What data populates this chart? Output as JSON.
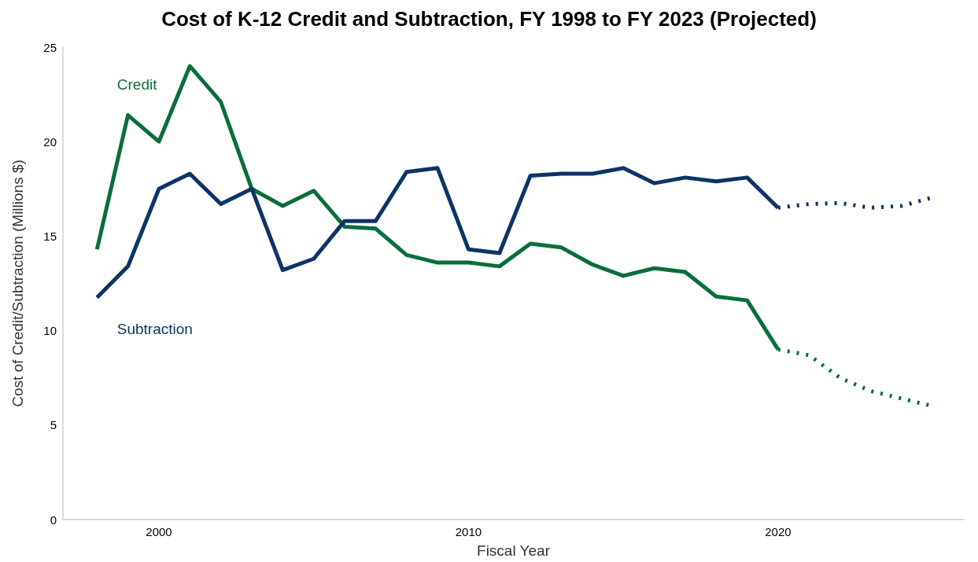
{
  "chart_data": {
    "type": "line",
    "title": "Cost of K-12 Credit and Subtraction, FY 1998 to FY 2023 (Projected)",
    "xlabel": "Fiscal Year",
    "ylabel": "Cost of Credit/Subtraction (Millions $)",
    "xlim": [
      1996.9,
      2026
    ],
    "xticks": [
      2000,
      2010,
      2020
    ],
    "ylim": [
      0,
      25
    ],
    "yticks": [
      0,
      5,
      10,
      15,
      20,
      25
    ],
    "grid": false,
    "legend": false,
    "series": [
      {
        "name": "Credit",
        "color": "#0a6e3a",
        "line_style": "solid",
        "x": [
          1998,
          1999,
          2000,
          2001,
          2002,
          2003,
          2004,
          2005,
          2006,
          2007,
          2008,
          2009,
          2010,
          2011,
          2012,
          2013,
          2014,
          2015,
          2016,
          2017,
          2018,
          2019,
          2020
        ],
        "values": [
          14.3,
          21.4,
          20.0,
          24.0,
          22.1,
          17.5,
          16.6,
          17.4,
          15.5,
          15.4,
          14.0,
          13.6,
          13.6,
          13.4,
          14.6,
          14.4,
          13.5,
          12.9,
          13.3,
          13.1,
          11.8,
          11.6,
          9.0
        ]
      },
      {
        "name": "Subtraction",
        "color": "#0c3468",
        "line_style": "solid",
        "x": [
          1998,
          1999,
          2000,
          2001,
          2002,
          2003,
          2004,
          2005,
          2006,
          2007,
          2008,
          2009,
          2010,
          2011,
          2012,
          2013,
          2014,
          2015,
          2016,
          2017,
          2018,
          2019,
          2020
        ],
        "values": [
          11.75,
          13.4,
          17.5,
          18.3,
          16.7,
          17.5,
          13.2,
          13.8,
          15.8,
          15.8,
          18.4,
          18.6,
          14.3,
          14.1,
          18.2,
          18.3,
          18.3,
          18.6,
          17.8,
          18.1,
          17.9,
          18.1,
          16.5
        ]
      },
      {
        "color": "#0a6e3a",
        "line_style": "dotted",
        "x": [
          2020,
          2021,
          2022,
          2023,
          2024,
          2025
        ],
        "values": [
          9.0,
          8.7,
          7.5,
          6.8,
          6.4,
          6.0
        ]
      },
      {
        "color": "#0c3468",
        "line_style": "dotted",
        "x": [
          2020,
          2021,
          2022,
          2023,
          2024,
          2025
        ],
        "values": [
          16.5,
          16.7,
          16.75,
          16.5,
          16.6,
          17.05
        ]
      }
    ]
  }
}
